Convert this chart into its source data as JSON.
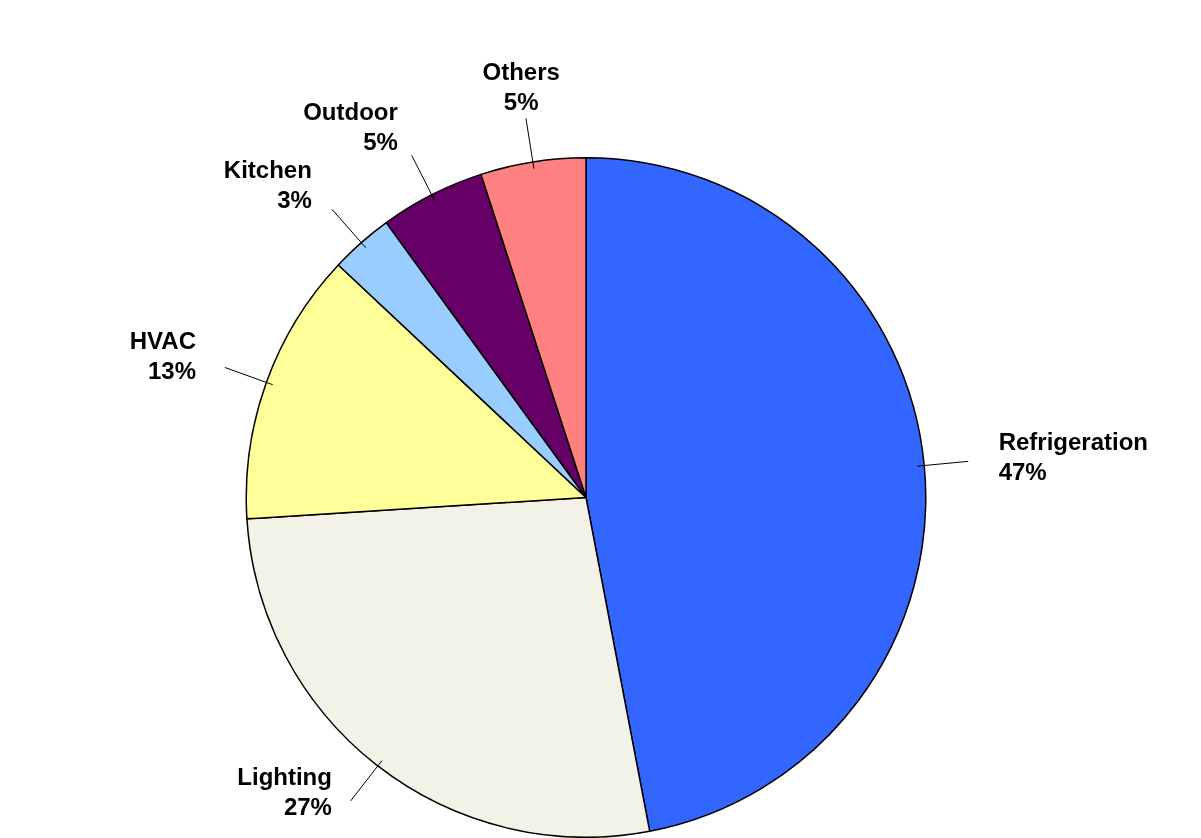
{
  "chart_data": {
    "type": "pie",
    "categories": [
      "Refrigeration",
      "Lighting",
      "HVAC",
      "Kitchen",
      "Outdoor",
      "Others"
    ],
    "values": [
      47,
      27,
      13,
      3,
      5,
      5
    ],
    "value_labels": [
      "47%",
      "27%",
      "13%",
      "3%",
      "5%",
      "5%"
    ],
    "colors": [
      "#3366ff",
      "#f2f2e6",
      "#ffff99",
      "#99ccff",
      "#660066",
      "#ff8080"
    ]
  }
}
